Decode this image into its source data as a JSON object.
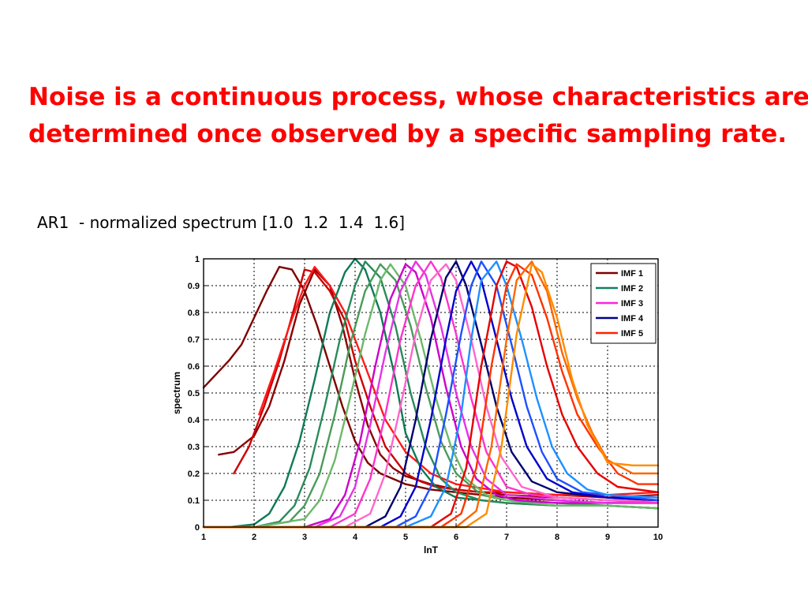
{
  "slide": {
    "headline_line1": "Noise is a continuous process, whose characteristics are",
    "headline_line2": "determined once observed by a specific sampling rate.",
    "subtitle": "AR1  - normalized spectrum [1.0  1.2  1.4  1.6]",
    "headline_color": "#ff0000"
  },
  "chart_data": {
    "type": "line",
    "title": "",
    "xlabel": "lnT",
    "ylabel": "spectrum",
    "xlim": [
      1,
      10
    ],
    "ylim": [
      0,
      1
    ],
    "xticks": [
      1,
      2,
      3,
      4,
      5,
      6,
      7,
      8,
      9,
      10
    ],
    "yticks": [
      0,
      0.1,
      0.2,
      0.3,
      0.4,
      0.5,
      0.6,
      0.7,
      0.8,
      0.9,
      1
    ],
    "ytick_labels": [
      "0",
      "0.1",
      "0.2",
      "0.3",
      "0.4",
      "0.5",
      "0.6",
      "0.7",
      "0.8",
      "0.9",
      "1"
    ],
    "grid": true,
    "legend_position": "top-right",
    "legend": [
      {
        "label": "IMF 1",
        "color": "#7f0000"
      },
      {
        "label": "IMF 2",
        "color": "#138060"
      },
      {
        "label": "IMF 3",
        "color": "#ff22dd"
      },
      {
        "label": "IMF 4",
        "color": "#00008b"
      },
      {
        "label": "IMF 5",
        "color": "#ff2200"
      }
    ],
    "series": [
      {
        "imf": 1,
        "color": "#7f0000",
        "x": [
          1.0,
          1.25,
          1.5,
          1.75,
          2.0,
          2.25,
          2.5,
          2.75,
          3.0,
          3.25,
          3.5,
          3.75,
          4.0,
          4.25,
          4.5,
          5.0,
          5.5,
          6.0,
          7.0,
          8.0,
          9.0,
          10.0
        ],
        "y": [
          0.52,
          0.57,
          0.62,
          0.68,
          0.78,
          0.88,
          0.97,
          0.96,
          0.88,
          0.75,
          0.6,
          0.45,
          0.32,
          0.24,
          0.2,
          0.16,
          0.14,
          0.13,
          0.11,
          0.1,
          0.09,
          0.09
        ]
      },
      {
        "imf": 1,
        "color": "#8b0000",
        "x": [
          1.3,
          1.6,
          2.0,
          2.3,
          2.6,
          2.9,
          3.2,
          3.5,
          3.75,
          4.0,
          4.25,
          4.5,
          4.75,
          5.0,
          5.5,
          6.0,
          7.0,
          8.0,
          9.0,
          10.0
        ],
        "y": [
          0.27,
          0.28,
          0.34,
          0.45,
          0.62,
          0.83,
          0.96,
          0.9,
          0.75,
          0.55,
          0.38,
          0.27,
          0.22,
          0.19,
          0.16,
          0.14,
          0.12,
          0.11,
          0.1,
          0.1
        ]
      },
      {
        "imf": 1,
        "color": "#cc0000",
        "x": [
          1.6,
          1.9,
          2.2,
          2.5,
          2.8,
          3.0,
          3.2,
          3.5,
          3.8,
          4.0,
          4.3,
          4.6,
          5.0,
          5.3,
          5.6,
          6.0,
          6.5,
          7.0,
          8.0,
          9.0,
          10.0
        ],
        "y": [
          0.2,
          0.3,
          0.45,
          0.62,
          0.82,
          0.96,
          0.95,
          0.88,
          0.77,
          0.62,
          0.45,
          0.3,
          0.2,
          0.17,
          0.15,
          0.14,
          0.13,
          0.13,
          0.12,
          0.11,
          0.12
        ]
      },
      {
        "imf": 1,
        "color": "#ff1a1a",
        "x": [
          2.1,
          2.4,
          2.7,
          3.0,
          3.2,
          3.5,
          3.8,
          4.0,
          4.3,
          4.6,
          5.0,
          5.5,
          6.0,
          7.0,
          8.0,
          9.0,
          10.0
        ],
        "y": [
          0.42,
          0.58,
          0.75,
          0.9,
          0.97,
          0.9,
          0.8,
          0.7,
          0.55,
          0.4,
          0.28,
          0.2,
          0.16,
          0.13,
          0.12,
          0.12,
          0.13
        ]
      },
      {
        "imf": 2,
        "color": "#0f7a55",
        "x": [
          1.0,
          1.5,
          2.0,
          2.3,
          2.6,
          2.9,
          3.2,
          3.5,
          3.8,
          4.0,
          4.2,
          4.5,
          4.8,
          5.0,
          5.3,
          5.6,
          6.0,
          7.0,
          8.0,
          9.0,
          10.0
        ],
        "y": [
          0.0,
          0.0,
          0.01,
          0.05,
          0.15,
          0.32,
          0.55,
          0.8,
          0.95,
          1.0,
          0.96,
          0.8,
          0.55,
          0.35,
          0.22,
          0.15,
          0.11,
          0.09,
          0.08,
          0.08,
          0.07
        ]
      },
      {
        "imf": 2,
        "color": "#2a8a5a",
        "x": [
          1.0,
          2.0,
          2.5,
          2.8,
          3.1,
          3.4,
          3.7,
          4.0,
          4.2,
          4.5,
          4.8,
          5.1,
          5.4,
          5.7,
          6.0,
          6.5,
          7.0,
          8.0,
          9.0,
          10.0
        ],
        "y": [
          0.0,
          0.0,
          0.02,
          0.08,
          0.22,
          0.45,
          0.7,
          0.9,
          0.99,
          0.93,
          0.75,
          0.5,
          0.3,
          0.18,
          0.13,
          0.1,
          0.09,
          0.08,
          0.08,
          0.07
        ]
      },
      {
        "imf": 2,
        "color": "#4a9a5a",
        "x": [
          1.0,
          2.0,
          2.7,
          3.0,
          3.3,
          3.6,
          3.9,
          4.2,
          4.5,
          4.8,
          5.1,
          5.4,
          5.7,
          6.0,
          6.5,
          7.0,
          8.0,
          9.0,
          10.0
        ],
        "y": [
          0.0,
          0.0,
          0.02,
          0.08,
          0.2,
          0.42,
          0.68,
          0.88,
          0.98,
          0.92,
          0.75,
          0.52,
          0.32,
          0.2,
          0.12,
          0.1,
          0.09,
          0.08,
          0.07
        ]
      },
      {
        "imf": 2,
        "color": "#6cb86c",
        "x": [
          1.0,
          2.0,
          3.0,
          3.3,
          3.6,
          3.9,
          4.2,
          4.5,
          4.7,
          5.0,
          5.3,
          5.6,
          5.9,
          6.2,
          6.6,
          7.0,
          8.0,
          9.0,
          10.0
        ],
        "y": [
          0.0,
          0.0,
          0.03,
          0.1,
          0.25,
          0.48,
          0.72,
          0.92,
          0.98,
          0.9,
          0.7,
          0.48,
          0.3,
          0.18,
          0.12,
          0.1,
          0.08,
          0.08,
          0.07
        ]
      },
      {
        "imf": 3,
        "color": "#cc00cc",
        "x": [
          1.0,
          3.0,
          3.5,
          3.8,
          4.1,
          4.4,
          4.7,
          5.0,
          5.2,
          5.5,
          5.8,
          6.1,
          6.4,
          6.8,
          7.2,
          8.0,
          9.0,
          10.0
        ],
        "y": [
          0.0,
          0.0,
          0.03,
          0.12,
          0.32,
          0.6,
          0.85,
          0.98,
          0.95,
          0.78,
          0.52,
          0.3,
          0.18,
          0.12,
          0.1,
          0.09,
          0.09,
          0.09
        ]
      },
      {
        "imf": 3,
        "color": "#e633e6",
        "x": [
          1.0,
          3.2,
          3.7,
          4.0,
          4.3,
          4.6,
          4.9,
          5.2,
          5.4,
          5.7,
          6.0,
          6.3,
          6.6,
          7.0,
          8.0,
          9.0,
          10.0
        ],
        "y": [
          0.0,
          0.0,
          0.04,
          0.15,
          0.38,
          0.65,
          0.88,
          0.99,
          0.94,
          0.75,
          0.5,
          0.3,
          0.18,
          0.12,
          0.1,
          0.09,
          0.09
        ]
      },
      {
        "imf": 3,
        "color": "#ff33cc",
        "x": [
          1.0,
          3.5,
          4.0,
          4.3,
          4.6,
          4.9,
          5.2,
          5.5,
          5.7,
          6.0,
          6.3,
          6.6,
          7.0,
          7.5,
          8.0,
          9.0,
          10.0
        ],
        "y": [
          0.0,
          0.0,
          0.05,
          0.18,
          0.42,
          0.7,
          0.9,
          0.99,
          0.93,
          0.72,
          0.48,
          0.28,
          0.15,
          0.12,
          0.11,
          0.1,
          0.09
        ]
      },
      {
        "imf": 3,
        "color": "#ff66cc",
        "x": [
          1.0,
          3.8,
          4.3,
          4.6,
          4.9,
          5.2,
          5.5,
          5.8,
          6.0,
          6.3,
          6.6,
          6.9,
          7.3,
          8.0,
          9.0,
          10.0
        ],
        "y": [
          0.0,
          0.0,
          0.05,
          0.2,
          0.45,
          0.72,
          0.92,
          0.98,
          0.92,
          0.7,
          0.45,
          0.26,
          0.15,
          0.11,
          0.1,
          0.1
        ]
      },
      {
        "imf": 4,
        "color": "#00006e",
        "x": [
          1.0,
          4.2,
          4.6,
          4.9,
          5.2,
          5.5,
          5.8,
          6.0,
          6.2,
          6.5,
          6.8,
          7.1,
          7.5,
          8.0,
          9.0,
          10.0
        ],
        "y": [
          0.0,
          0.0,
          0.04,
          0.15,
          0.4,
          0.7,
          0.93,
          0.99,
          0.9,
          0.68,
          0.45,
          0.28,
          0.17,
          0.13,
          0.11,
          0.1
        ]
      },
      {
        "imf": 4,
        "color": "#0000cd",
        "x": [
          1.0,
          4.5,
          4.9,
          5.2,
          5.5,
          5.8,
          6.0,
          6.3,
          6.5,
          6.8,
          7.1,
          7.4,
          7.8,
          8.3,
          9.0,
          10.0
        ],
        "y": [
          0.0,
          0.0,
          0.04,
          0.15,
          0.4,
          0.7,
          0.88,
          0.99,
          0.92,
          0.7,
          0.48,
          0.3,
          0.18,
          0.13,
          0.11,
          0.1
        ]
      },
      {
        "imf": 4,
        "color": "#1e50ff",
        "x": [
          1.0,
          4.8,
          5.2,
          5.5,
          5.8,
          6.1,
          6.3,
          6.5,
          6.8,
          7.1,
          7.4,
          7.7,
          8.0,
          8.5,
          9.0,
          10.0
        ],
        "y": [
          0.0,
          0.0,
          0.04,
          0.15,
          0.42,
          0.72,
          0.9,
          0.99,
          0.9,
          0.68,
          0.45,
          0.28,
          0.18,
          0.13,
          0.12,
          0.1
        ]
      },
      {
        "imf": 4,
        "color": "#1e90ff",
        "x": [
          1.0,
          5.0,
          5.5,
          5.8,
          6.1,
          6.3,
          6.5,
          6.8,
          7.0,
          7.3,
          7.6,
          7.9,
          8.2,
          8.6,
          9.0,
          10.0
        ],
        "y": [
          0.0,
          0.0,
          0.04,
          0.15,
          0.42,
          0.7,
          0.92,
          0.99,
          0.9,
          0.7,
          0.48,
          0.3,
          0.2,
          0.14,
          0.12,
          0.11
        ]
      },
      {
        "imf": 5,
        "color": "#e60000",
        "x": [
          1.0,
          5.5,
          5.9,
          6.2,
          6.5,
          6.8,
          7.0,
          7.2,
          7.5,
          7.8,
          8.1,
          8.4,
          8.8,
          9.2,
          10.0
        ],
        "y": [
          0.0,
          0.0,
          0.05,
          0.22,
          0.6,
          0.9,
          0.99,
          0.97,
          0.82,
          0.6,
          0.42,
          0.3,
          0.2,
          0.15,
          0.13
        ]
      },
      {
        "imf": 5,
        "color": "#ff3300",
        "x": [
          1.0,
          5.7,
          6.1,
          6.4,
          6.7,
          7.0,
          7.2,
          7.5,
          7.8,
          8.1,
          8.4,
          8.8,
          9.2,
          9.6,
          10.0
        ],
        "y": [
          0.0,
          0.0,
          0.05,
          0.22,
          0.6,
          0.9,
          0.98,
          0.94,
          0.78,
          0.58,
          0.42,
          0.3,
          0.2,
          0.16,
          0.16
        ]
      },
      {
        "imf": 5,
        "color": "#ff6600",
        "x": [
          1.0,
          6.0,
          6.4,
          6.7,
          7.0,
          7.2,
          7.5,
          7.8,
          8.1,
          8.4,
          8.7,
          9.0,
          9.5,
          10.0
        ],
        "y": [
          0.0,
          0.0,
          0.06,
          0.3,
          0.7,
          0.92,
          0.99,
          0.88,
          0.65,
          0.48,
          0.35,
          0.25,
          0.2,
          0.2
        ]
      },
      {
        "imf": 5,
        "color": "#ff8c00",
        "x": [
          1.0,
          6.2,
          6.6,
          6.9,
          7.2,
          7.5,
          7.7,
          8.0,
          8.3,
          8.6,
          9.0,
          9.5,
          10.0
        ],
        "y": [
          0.0,
          0.0,
          0.05,
          0.3,
          0.72,
          0.98,
          0.95,
          0.78,
          0.55,
          0.38,
          0.24,
          0.23,
          0.23
        ]
      }
    ]
  }
}
